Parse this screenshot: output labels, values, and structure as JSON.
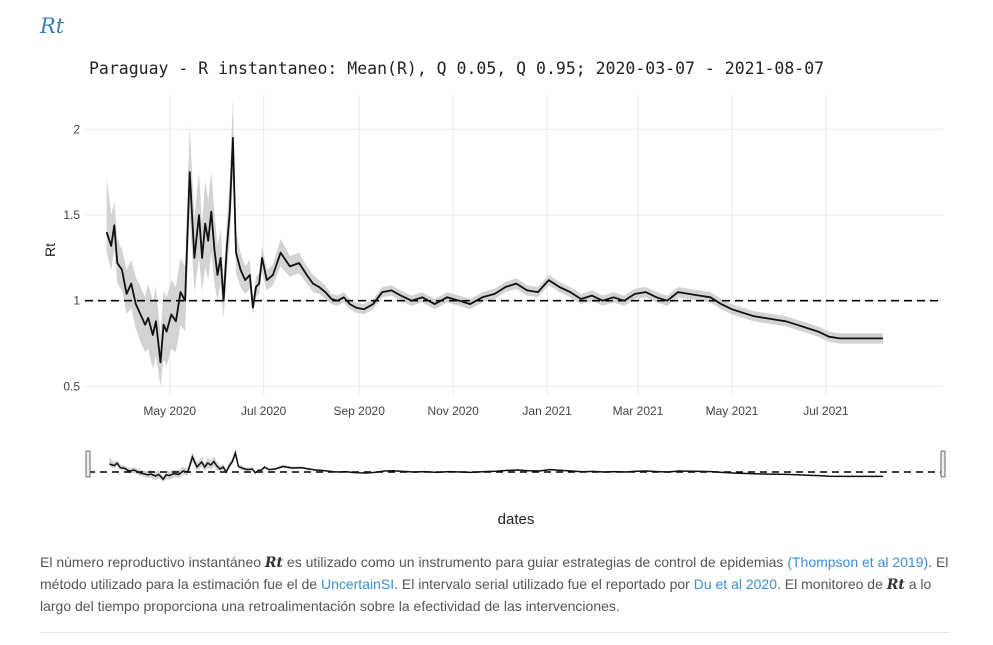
{
  "heading": "Rt",
  "chart_data": {
    "type": "line",
    "title": "Paraguay - R instantaneo: Mean(R), Q 0.05, Q 0.95;  2020-03-07 - 2021-08-07",
    "xlabel": "dates",
    "ylabel": "Rt",
    "xlim": [
      "2020-03-07",
      "2021-09-15"
    ],
    "ylim": [
      0.45,
      2.2
    ],
    "yticks": [
      0.5,
      1,
      1.5,
      2
    ],
    "ytick_labels": [
      "0.5",
      "1",
      "1.5",
      "2"
    ],
    "xticks": [
      "2020-05-01",
      "2020-07-01",
      "2020-09-01",
      "2020-11-01",
      "2021-01-01",
      "2021-03-01",
      "2021-05-01",
      "2021-07-01"
    ],
    "xtick_labels": [
      "May 2020",
      "Jul 2020",
      "Sep 2020",
      "Nov 2020",
      "Jan 2021",
      "Mar 2021",
      "May 2021",
      "Jul 2021"
    ],
    "grid": true,
    "reference_line": 1,
    "range_slider": true,
    "colors": {
      "mean": "#111111",
      "band": "#d3d3d3",
      "reference": "#000000"
    },
    "series": [
      {
        "x": [
          "2020-03-21",
          "2020-03-24",
          "2020-03-26",
          "2020-03-28",
          "2020-03-31",
          "2020-04-03",
          "2020-04-06",
          "2020-04-09",
          "2020-04-12",
          "2020-04-15",
          "2020-04-17",
          "2020-04-20",
          "2020-04-22",
          "2020-04-25",
          "2020-04-27",
          "2020-04-29",
          "2020-05-02",
          "2020-05-05",
          "2020-05-08",
          "2020-05-11",
          "2020-05-14",
          "2020-05-17",
          "2020-05-20",
          "2020-05-22",
          "2020-05-24",
          "2020-05-26",
          "2020-05-28",
          "2020-05-30",
          "2020-06-01",
          "2020-06-03",
          "2020-06-05",
          "2020-06-07",
          "2020-06-09",
          "2020-06-11",
          "2020-06-13",
          "2020-06-16",
          "2020-06-19",
          "2020-06-22",
          "2020-06-24",
          "2020-06-26",
          "2020-06-28",
          "2020-06-30",
          "2020-07-03",
          "2020-07-07",
          "2020-07-12",
          "2020-07-18",
          "2020-07-24",
          "2020-07-29",
          "2020-08-02",
          "2020-08-06",
          "2020-08-10",
          "2020-08-14",
          "2020-08-18",
          "2020-08-22",
          "2020-08-26",
          "2020-08-30",
          "2020-09-04",
          "2020-09-10",
          "2020-09-16",
          "2020-09-22",
          "2020-09-28",
          "2020-10-05",
          "2020-10-12",
          "2020-10-20",
          "2020-10-28",
          "2020-11-05",
          "2020-11-12",
          "2020-11-20",
          "2020-11-28",
          "2020-12-05",
          "2020-12-12",
          "2020-12-19",
          "2020-12-26",
          "2021-01-02",
          "2021-01-09",
          "2021-01-16",
          "2021-01-23",
          "2021-01-30",
          "2021-02-06",
          "2021-02-13",
          "2021-02-20",
          "2021-02-27",
          "2021-03-06",
          "2021-03-13",
          "2021-03-20",
          "2021-03-27",
          "2021-04-03",
          "2021-04-10",
          "2021-04-17",
          "2021-04-24",
          "2021-05-01",
          "2021-05-08",
          "2021-05-15",
          "2021-05-22",
          "2021-05-29",
          "2021-06-05",
          "2021-06-12",
          "2021-06-19",
          "2021-06-26",
          "2021-07-03",
          "2021-07-10",
          "2021-07-17",
          "2021-07-24",
          "2021-07-31",
          "2021-08-07"
        ],
        "mean": [
          1.4,
          1.32,
          1.44,
          1.22,
          1.18,
          1.04,
          1.1,
          0.98,
          0.92,
          0.86,
          0.9,
          0.8,
          0.88,
          0.64,
          0.86,
          0.82,
          0.92,
          0.88,
          1.05,
          1.0,
          1.75,
          1.25,
          1.5,
          1.25,
          1.45,
          1.35,
          1.52,
          1.3,
          1.15,
          1.25,
          1.0,
          1.3,
          1.52,
          1.95,
          1.28,
          1.18,
          1.12,
          1.15,
          0.96,
          1.08,
          1.1,
          1.25,
          1.12,
          1.15,
          1.28,
          1.2,
          1.22,
          1.15,
          1.1,
          1.08,
          1.05,
          1.01,
          1.0,
          1.02,
          0.98,
          0.96,
          0.95,
          0.98,
          1.05,
          1.06,
          1.03,
          1.0,
          1.02,
          0.98,
          1.02,
          1.0,
          0.98,
          1.02,
          1.04,
          1.08,
          1.1,
          1.06,
          1.05,
          1.12,
          1.08,
          1.05,
          1.01,
          1.03,
          1.0,
          1.02,
          1.0,
          1.04,
          1.05,
          1.02,
          1.0,
          1.05,
          1.04,
          1.03,
          1.02,
          0.98,
          0.95,
          0.93,
          0.91,
          0.9,
          0.89,
          0.88,
          0.86,
          0.84,
          0.82,
          0.79,
          0.78,
          0.78,
          0.78,
          0.78,
          0.78
        ],
        "q05": [
          1.28,
          1.18,
          1.3,
          1.1,
          1.06,
          0.92,
          0.96,
          0.84,
          0.76,
          0.7,
          0.72,
          0.6,
          0.68,
          0.5,
          0.66,
          0.62,
          0.72,
          0.7,
          0.86,
          0.82,
          1.5,
          1.05,
          1.25,
          1.05,
          1.2,
          1.12,
          1.28,
          1.1,
          1.0,
          1.1,
          0.9,
          1.15,
          1.36,
          1.72,
          1.16,
          1.08,
          1.04,
          1.07,
          0.92,
          1.02,
          1.04,
          1.17,
          1.06,
          1.09,
          1.2,
          1.14,
          1.16,
          1.1,
          1.05,
          1.04,
          1.01,
          0.98,
          0.97,
          0.99,
          0.95,
          0.93,
          0.92,
          0.95,
          1.02,
          1.03,
          1.0,
          0.97,
          0.99,
          0.95,
          0.99,
          0.97,
          0.95,
          0.99,
          1.01,
          1.05,
          1.07,
          1.03,
          1.02,
          1.09,
          1.05,
          1.02,
          0.98,
          1.0,
          0.97,
          0.99,
          0.97,
          1.01,
          1.02,
          0.99,
          0.97,
          1.02,
          1.01,
          1.0,
          0.99,
          0.95,
          0.92,
          0.9,
          0.88,
          0.87,
          0.86,
          0.85,
          0.83,
          0.81,
          0.79,
          0.76,
          0.75,
          0.75,
          0.75,
          0.75,
          0.75
        ],
        "q95": [
          1.72,
          1.5,
          1.58,
          1.36,
          1.3,
          1.18,
          1.24,
          1.14,
          1.08,
          1.02,
          1.1,
          1.0,
          1.08,
          0.8,
          1.06,
          1.02,
          1.12,
          1.08,
          1.25,
          1.2,
          2.02,
          1.48,
          1.75,
          1.45,
          1.7,
          1.58,
          1.76,
          1.52,
          1.32,
          1.42,
          1.12,
          1.46,
          1.7,
          2.18,
          1.4,
          1.28,
          1.2,
          1.24,
          1.02,
          1.14,
          1.16,
          1.32,
          1.18,
          1.21,
          1.36,
          1.26,
          1.28,
          1.2,
          1.15,
          1.12,
          1.09,
          1.04,
          1.03,
          1.05,
          1.01,
          0.99,
          0.98,
          1.01,
          1.08,
          1.09,
          1.06,
          1.03,
          1.05,
          1.01,
          1.05,
          1.03,
          1.01,
          1.05,
          1.07,
          1.11,
          1.13,
          1.09,
          1.08,
          1.15,
          1.11,
          1.08,
          1.04,
          1.06,
          1.03,
          1.05,
          1.03,
          1.07,
          1.08,
          1.05,
          1.03,
          1.08,
          1.07,
          1.06,
          1.05,
          1.01,
          0.98,
          0.96,
          0.94,
          0.93,
          0.92,
          0.91,
          0.89,
          0.87,
          0.85,
          0.82,
          0.81,
          0.81,
          0.81,
          0.81,
          0.81
        ]
      }
    ]
  },
  "caption": {
    "p1": "El número reproductivo instantáneo ",
    "rt1": "Rt",
    "p2": " es utilizado como un instrumento para guiar estrategias de control de epidemias ",
    "link1": "(Thompson et al 2019)",
    "p3": ". El método utilizado para la estimación fue el de ",
    "link2": "UncertainSI",
    "p4": ". El intervalo serial utilizado fue el reportado por ",
    "link3": "Du et al 2020",
    "p5": ". El monitoreo de ",
    "rt2": "Rt",
    "p6": " a lo largo del tiempo proporciona una retroalimentación sobre la efectividad de las intervenciones."
  }
}
